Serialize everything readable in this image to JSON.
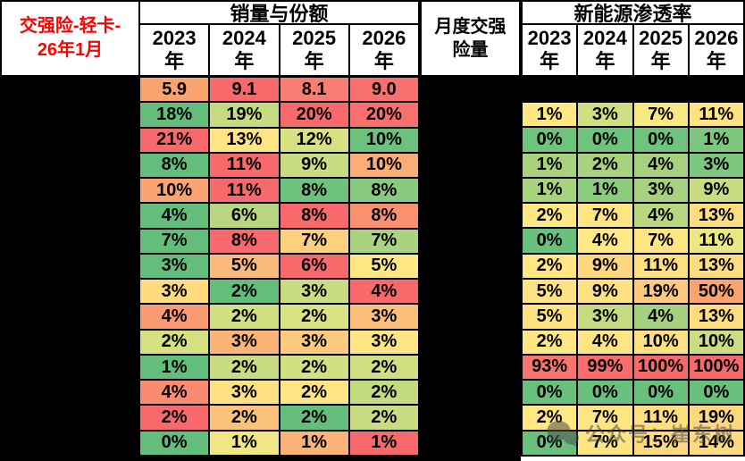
{
  "colors": {
    "title_text": "#FF0000",
    "header_bg": "#FFFFFF",
    "grid_background": "#000000",
    "watermark_text": "#4d4d4d",
    "bottom_strip": "#FFFFFF"
  },
  "header": {
    "title_line1": "交强险-轻卡-",
    "title_line2": "26年1月",
    "middle_line1": "月度交强",
    "middle_line2": "险量"
  },
  "watermark": {
    "icon": "wechat-chat-bubbles-icon",
    "text": "公众号：崔东树"
  },
  "chart_data": [
    {
      "type": "table",
      "title": "销量与份额",
      "columns": [
        "2023年",
        "2024年",
        "2025年",
        "2026年"
      ],
      "row_labels_redacted": true,
      "values": [
        [
          "5.9",
          "9.1",
          "8.1",
          "9.0"
        ],
        [
          "18%",
          "19%",
          "20%",
          "20%"
        ],
        [
          "21%",
          "13%",
          "12%",
          "10%"
        ],
        [
          "8%",
          "11%",
          "9%",
          "10%"
        ],
        [
          "10%",
          "11%",
          "8%",
          "8%"
        ],
        [
          "4%",
          "6%",
          "8%",
          "8%"
        ],
        [
          "7%",
          "8%",
          "7%",
          "7%"
        ],
        [
          "3%",
          "5%",
          "6%",
          "5%"
        ],
        [
          "3%",
          "2%",
          "3%",
          "4%"
        ],
        [
          "4%",
          "2%",
          "2%",
          "3%"
        ],
        [
          "2%",
          "3%",
          "3%",
          "3%"
        ],
        [
          "1%",
          "2%",
          "2%",
          "2%"
        ],
        [
          "4%",
          "3%",
          "2%",
          "2%"
        ],
        [
          "2%",
          "2%",
          "2%",
          "2%"
        ],
        [
          "0%",
          "1%",
          "1%",
          "1%"
        ]
      ],
      "cell_colors": [
        [
          "#F9A36F",
          "#F8696B",
          "#F87E71",
          "#F8706D"
        ],
        [
          "#63BE7B",
          "#C5DB80",
          "#F8696B",
          "#F8706D"
        ],
        [
          "#F8696B",
          "#FFE483",
          "#D7E182",
          "#6CC17C"
        ],
        [
          "#63BE7B",
          "#F8696B",
          "#C9DC81",
          "#FBAD76"
        ],
        [
          "#FAA471",
          "#F8696B",
          "#6EC27C",
          "#88CA7E"
        ],
        [
          "#63BE7B",
          "#B7D67F",
          "#F8696B",
          "#F9906F"
        ],
        [
          "#63BE7B",
          "#F8696B",
          "#FED07D",
          "#ABD37F"
        ],
        [
          "#63BE7B",
          "#FCBA7A",
          "#F8696B",
          "#FFE884"
        ],
        [
          "#FFDA7F",
          "#63BE7B",
          "#C9DC81",
          "#F8696B"
        ],
        [
          "#FA9A72",
          "#CFDF81",
          "#D8E282",
          "#FCBE7B"
        ],
        [
          "#D5E081",
          "#FBB377",
          "#FCC97D",
          "#FFE583"
        ],
        [
          "#63BE7B",
          "#C9DC81",
          "#D2E081",
          "#D0DF81"
        ],
        [
          "#F98B70",
          "#FFE182",
          "#FFE483",
          "#C3DA80"
        ],
        [
          "#F8696B",
          "#FCC17B",
          "#63BE7B",
          "#C9DC81"
        ],
        [
          "#63BE7B",
          "#F0E783",
          "#FBB277",
          "#F8696B"
        ]
      ]
    },
    {
      "type": "table",
      "title": "新能源渗透率",
      "columns": [
        "2023年",
        "2024年",
        "2025年",
        "2026年"
      ],
      "row_labels_redacted": true,
      "first_row_redacted": true,
      "values": [
        [
          "1%",
          "3%",
          "7%",
          "11%"
        ],
        [
          "0%",
          "0%",
          "0%",
          "1%"
        ],
        [
          "1%",
          "2%",
          "4%",
          "3%"
        ],
        [
          "1%",
          "1%",
          "3%",
          "9%"
        ],
        [
          "2%",
          "7%",
          "4%",
          "13%"
        ],
        [
          "0%",
          "4%",
          "7%",
          "11%"
        ],
        [
          "2%",
          "9%",
          "11%",
          "13%"
        ],
        [
          "5%",
          "9%",
          "19%",
          "50%"
        ],
        [
          "5%",
          "3%",
          "4%",
          "13%"
        ],
        [
          "2%",
          "4%",
          "10%",
          "10%"
        ],
        [
          "93%",
          "99%",
          "100%",
          "100%"
        ],
        [
          "0%",
          "0%",
          "0%",
          "0%"
        ],
        [
          "2%",
          "7%",
          "11%",
          "19%"
        ],
        [
          "0%",
          "7%",
          "15%",
          "14%"
        ]
      ],
      "cell_colors": [
        [
          "#FFE783",
          "#CFDF81",
          "#F7E883",
          "#FFE382"
        ],
        [
          "#6EC37D",
          "#6EC37D",
          "#6EC37D",
          "#7CC77E"
        ],
        [
          "#A9D27F",
          "#A9D27F",
          "#A6D17F",
          "#7CC77E"
        ],
        [
          "#A9D27F",
          "#8CCA7D",
          "#A6D17F",
          "#C9DC81"
        ],
        [
          "#FFE883",
          "#FFE481",
          "#B9D77F",
          "#FFDC80"
        ],
        [
          "#68C07C",
          "#FFE984",
          "#FFE482",
          "#E9E883"
        ],
        [
          "#FFE883",
          "#FED67E",
          "#FFE080",
          "#FFDC80"
        ],
        [
          "#FFE382",
          "#FFE181",
          "#FDC97C",
          "#F9A36F"
        ],
        [
          "#FFE382",
          "#C5DB80",
          "#A5D17F",
          "#FFDC80"
        ],
        [
          "#FFE883",
          "#FFE483",
          "#FFE080",
          "#CBDD81"
        ],
        [
          "#F8756E",
          "#F86D6C",
          "#F8696B",
          "#F8696B"
        ],
        [
          "#68C07C",
          "#68C07C",
          "#68C07C",
          "#68C07C"
        ],
        [
          "#FFE883",
          "#FFE482",
          "#FFDF80",
          "#FFD77E"
        ],
        [
          "#68C07C",
          "#FFE482",
          "#FFD97F",
          "#FFDA7F"
        ]
      ]
    }
  ]
}
